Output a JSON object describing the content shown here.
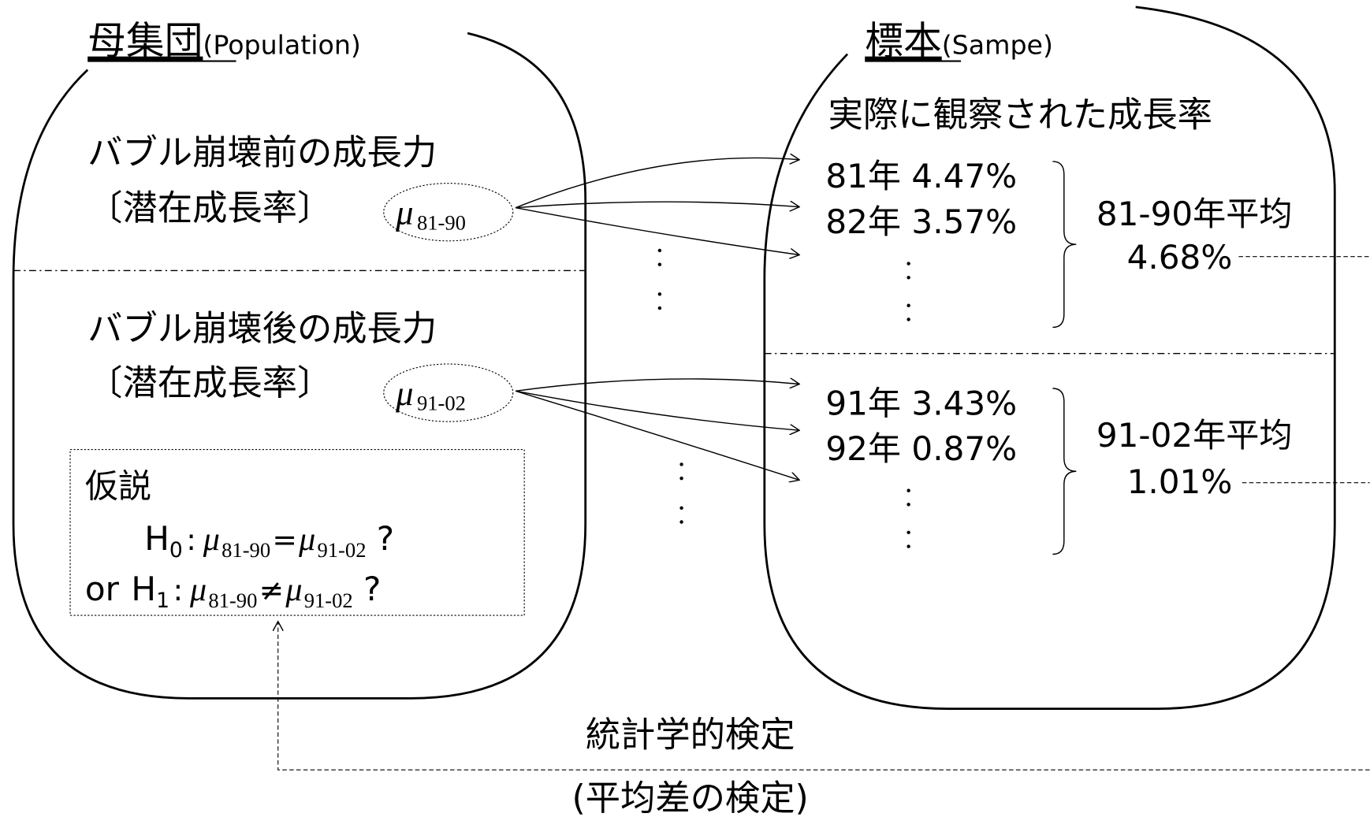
{
  "population": {
    "title": "母集団",
    "subtitle": "(Population)",
    "before": {
      "label": "バブル崩壊前の成長力",
      "sub": "〔潜在成長率〕",
      "param": "μ",
      "param_sub": "81-90"
    },
    "after": {
      "label": "バブル崩壊後の成長力",
      "sub": "〔潜在成長率〕",
      "param": "μ",
      "param_sub": "91-02"
    },
    "hypothesis": {
      "title": "仮説",
      "h0": [
        "H",
        "0",
        ":",
        "μ",
        "81-90",
        "=",
        "μ",
        "91-02",
        "?"
      ],
      "h1": [
        "or",
        "H",
        "1",
        ":",
        "μ",
        "81-90",
        "≠",
        "μ",
        "91-02",
        "?"
      ]
    }
  },
  "sample": {
    "title": "標本",
    "subtitle": "(Sampe)",
    "heading": "実際に観察された成長率",
    "before": {
      "rows": [
        "81年 4.47%",
        "82年 3.57%"
      ],
      "mean_label": "81-90年平均",
      "mean": "4.68%"
    },
    "after": {
      "rows": [
        "91年 3.43%",
        "92年 0.87%"
      ],
      "mean_label": "91-02年平均",
      "mean": "1.01%"
    }
  },
  "test": {
    "label": "統計学的検定",
    "sub": "(平均差の検定)"
  }
}
